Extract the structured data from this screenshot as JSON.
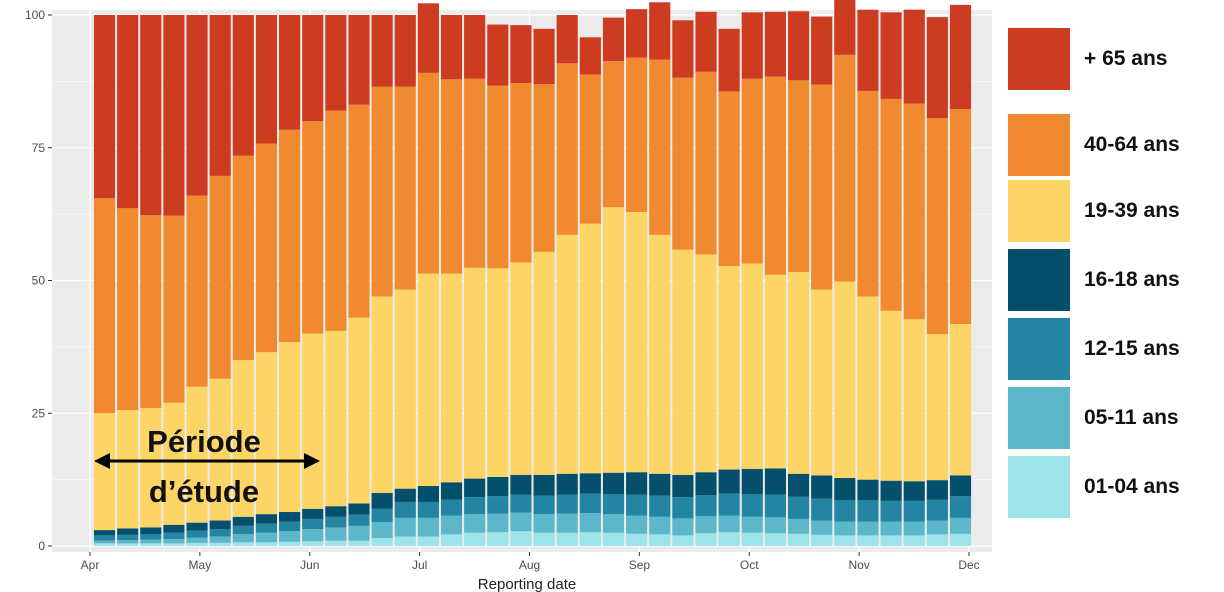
{
  "chart_data": {
    "type": "bar",
    "stacked": true,
    "xlabel": "Reporting date",
    "ylabel": "",
    "ylim": [
      0,
      100
    ],
    "yticks": [
      0,
      25,
      50,
      75,
      100
    ],
    "xtick_labels": [
      "Apr",
      "May",
      "Jun",
      "Jul",
      "Aug",
      "Sep",
      "Oct",
      "Nov",
      "Dec"
    ],
    "annotation": {
      "line1": "Période",
      "line2": "d’étude"
    },
    "series": [
      {
        "name": "01-04 ans",
        "color": "#9ce3ea",
        "values": [
          0.5,
          0.5,
          0.5,
          0.5,
          0.6,
          0.6,
          0.7,
          0.7,
          0.8,
          0.9,
          1,
          1,
          1.5,
          1.8,
          1.8,
          2.2,
          2.5,
          2.6,
          2.8,
          2.5,
          2.5,
          2.6,
          2.5,
          2.3,
          2.2,
          2,
          2.4,
          2.6,
          2.5,
          2.4,
          2.3,
          2.1,
          2,
          2,
          2,
          2,
          2.2,
          2.3
        ]
      },
      {
        "name": "05-11 ans",
        "color": "#5cb7cb",
        "values": [
          0.5,
          0.6,
          0.7,
          0.8,
          1,
          1.2,
          1.5,
          1.8,
          2,
          2.3,
          2.5,
          2.8,
          3,
          3.5,
          3.5,
          3.5,
          3.5,
          3.5,
          3.5,
          3.5,
          3.6,
          3.6,
          3.5,
          3.4,
          3.3,
          3.2,
          3.2,
          3.1,
          3,
          3,
          2.8,
          2.7,
          2.6,
          2.6,
          2.6,
          2.6,
          2.6,
          3
        ]
      },
      {
        "name": "12-15 ans",
        "color": "#2485a2",
        "values": [
          1,
          1,
          1,
          1.2,
          1.3,
          1.4,
          1.6,
          1.7,
          1.8,
          1.9,
          2,
          2.1,
          2.5,
          3,
          3,
          3,
          3.2,
          3.3,
          3.4,
          3.5,
          3.6,
          3.7,
          3.8,
          4,
          4,
          4,
          4,
          4.2,
          4.3,
          4.3,
          4.2,
          4.1,
          4,
          4,
          3.9,
          3.9,
          3.9,
          4.1
        ]
      },
      {
        "name": "16-18 ans",
        "color": "#044f6c",
        "values": [
          1,
          1.2,
          1.3,
          1.5,
          1.5,
          1.6,
          1.7,
          1.8,
          1.8,
          1.9,
          2,
          2.1,
          3,
          2.5,
          3,
          3.3,
          3.5,
          3.6,
          3.7,
          3.9,
          3.9,
          3.8,
          4,
          4.2,
          4.1,
          4.2,
          4.3,
          4.5,
          4.7,
          4.9,
          4.3,
          4.4,
          4.2,
          3.9,
          3.8,
          3.7,
          3.7,
          3.9
        ]
      },
      {
        "name": "19-39 ans",
        "color": "#fdd567",
        "values": [
          22,
          22.3,
          22.5,
          23,
          25.6,
          26.7,
          29.5,
          30.5,
          32,
          33,
          33,
          35,
          37,
          37.5,
          40,
          39.3,
          39.7,
          39.3,
          40,
          42,
          45,
          47,
          50,
          49,
          45,
          42.4,
          41,
          38.3,
          38.7,
          36.5,
          38,
          35,
          37,
          34.5,
          32,
          30.5,
          27.5,
          28.5
        ]
      },
      {
        "name": "40-64 ans",
        "color": "#f0892f",
        "values": [
          40.5,
          38,
          36.3,
          35.2,
          36,
          38.2,
          38.5,
          39.3,
          40,
          40,
          41.5,
          40.1,
          39.5,
          38.2,
          37.8,
          36.6,
          35.6,
          34.4,
          33.8,
          31.6,
          32.3,
          28.1,
          27.5,
          29.1,
          33,
          32.4,
          34.4,
          32.9,
          34.8,
          37.3,
          36.1,
          38.6,
          42.7,
          38.7,
          39.9,
          40.6,
          40.7,
          40.5
        ]
      },
      {
        "name": "+ 65 ans",
        "color": "#cd3b20",
        "values": [
          34.5,
          36.4,
          37.7,
          37.8,
          34,
          30.3,
          26.5,
          24.2,
          21.6,
          20,
          18,
          16.9,
          13.5,
          13.5,
          13.1,
          12.1,
          12,
          11.5,
          10.9,
          10.4,
          9.1,
          7,
          8.2,
          9.1,
          10.8,
          10.8,
          11.3,
          11.8,
          12.5,
          12.2,
          13,
          12.8,
          13.2,
          15.3,
          16.3,
          17.7,
          19,
          19.6
        ]
      }
    ]
  },
  "legend": [
    {
      "label": "+ 65 ans",
      "color": "#cd3b20"
    },
    {
      "label": "40-64 ans",
      "color": "#f0892f"
    },
    {
      "label": "19-39 ans",
      "color": "#fdd567"
    },
    {
      "label": "16-18 ans",
      "color": "#044f6c"
    },
    {
      "label": "12-15 ans",
      "color": "#2485a2"
    },
    {
      "label": "05-11 ans",
      "color": "#5cb7cb"
    },
    {
      "label": "01-04 ans",
      "color": "#9ce3ea"
    }
  ]
}
